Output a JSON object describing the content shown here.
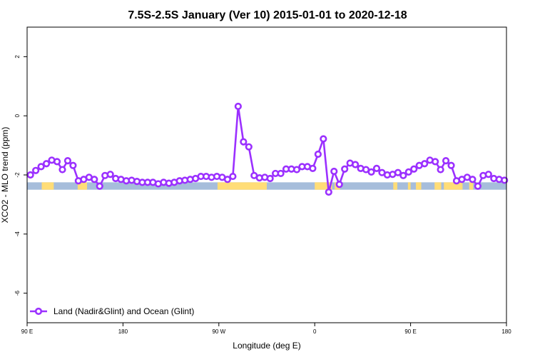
{
  "chart_data": {
    "type": "line",
    "title": "7.5S-2.5S January (Ver 10)   2015-01-01 to 2020-12-18",
    "xlabel": "Longitude (deg E)",
    "ylabel": "XCO2 - MLO trend (ppm)",
    "xlim": [
      90,
      450
    ],
    "ylim": [
      -7,
      3
    ],
    "x_ticks": [
      {
        "value": 90,
        "label": "90 E"
      },
      {
        "value": 162,
        "label": "180"
      },
      {
        "value": 234,
        "label": "90 W"
      },
      {
        "value": 306,
        "label": "0"
      },
      {
        "value": 378,
        "label": "90 E"
      },
      {
        "value": 450,
        "label": "180"
      }
    ],
    "y_ticks": [
      {
        "value": 2,
        "label": "2"
      },
      {
        "value": 0,
        "label": "0"
      },
      {
        "value": -2,
        "label": "-2"
      },
      {
        "value": -4,
        "label": "-4"
      },
      {
        "value": -6,
        "label": "-6"
      }
    ],
    "grid": false,
    "legend_position": "bottom-left",
    "series": [
      {
        "name": "Land (Nadir&Glint) and Ocean (Glint)",
        "color": "#9b30ff",
        "x": [
          92.5,
          96.5,
          100.5,
          104.5,
          108.5,
          112.5,
          116.5,
          120.5,
          124.5,
          128.5,
          132.5,
          136.5,
          140.5,
          144.5,
          148.5,
          152.5,
          156.5,
          160.5,
          164.5,
          168.5,
          172.5,
          176.5,
          180.5,
          184.5,
          188.5,
          192.5,
          196.5,
          200.5,
          204.5,
          208.5,
          212.5,
          216.5,
          220.5,
          224.5,
          228.5,
          232.5,
          236.5,
          240.5,
          244.5,
          248.5,
          252.5,
          256.5,
          260.5,
          264.5,
          268.5,
          272.5,
          276.5,
          280.5,
          284.5,
          288.5,
          292.5,
          296.5,
          300.5,
          304.5,
          308.5,
          312.5,
          316.5,
          320.5,
          324.5,
          328.5,
          332.5,
          336.5,
          340.5,
          344.5,
          348.5,
          352.5,
          356.5,
          360.5,
          364.5,
          368.5,
          372.5,
          376.5,
          380.5,
          384.5,
          388.5,
          392.5,
          396.5,
          400.5,
          404.5,
          408.5,
          412.5,
          416.5,
          420.5,
          424.5,
          428.5,
          432.5,
          436.5,
          440.5,
          444.5,
          448.5
        ],
        "y": [
          -2.0,
          -1.85,
          -1.72,
          -1.62,
          -1.5,
          -1.55,
          -1.82,
          -1.52,
          -1.68,
          -2.2,
          -2.15,
          -2.08,
          -2.15,
          -2.38,
          -2.02,
          -1.98,
          -2.12,
          -2.15,
          -2.2,
          -2.18,
          -2.22,
          -2.25,
          -2.25,
          -2.25,
          -2.3,
          -2.25,
          -2.28,
          -2.25,
          -2.2,
          -2.18,
          -2.15,
          -2.12,
          -2.05,
          -2.05,
          -2.08,
          -2.05,
          -2.08,
          -2.15,
          -2.05,
          0.32,
          -0.88,
          -1.05,
          -2.02,
          -2.1,
          -2.08,
          -2.12,
          -1.95,
          -1.95,
          -1.8,
          -1.8,
          -1.82,
          -1.72,
          -1.72,
          -1.78,
          -1.3,
          -0.78,
          -2.58,
          -1.88,
          -2.32,
          -1.8,
          -1.6,
          -1.65,
          -1.78,
          -1.82,
          -1.9,
          -1.78,
          -1.92,
          -2.0,
          -1.98,
          -1.92,
          -2.02,
          -1.9,
          -1.8,
          -1.68,
          -1.62,
          -1.5,
          -1.55,
          -1.82,
          -1.52,
          -1.68,
          -2.2,
          -2.15,
          -2.08,
          -2.15,
          -2.38,
          -2.02,
          -1.98,
          -2.12,
          -2.15,
          -2.18
        ]
      }
    ],
    "surface_bar": {
      "y_range": [
        -2.5,
        -2.25
      ],
      "ocean_color": "#a6bddb",
      "land_color": "#ffdd77",
      "land_segments": [
        [
          101,
          110
        ],
        [
          128,
          135
        ],
        [
          233,
          241
        ],
        [
          241,
          270
        ],
        [
          306,
          319
        ],
        [
          321,
          325
        ],
        [
          365,
          368
        ],
        [
          376,
          378
        ],
        [
          382,
          386
        ],
        [
          396,
          401
        ],
        [
          403,
          417
        ],
        [
          422,
          425
        ]
      ]
    }
  }
}
